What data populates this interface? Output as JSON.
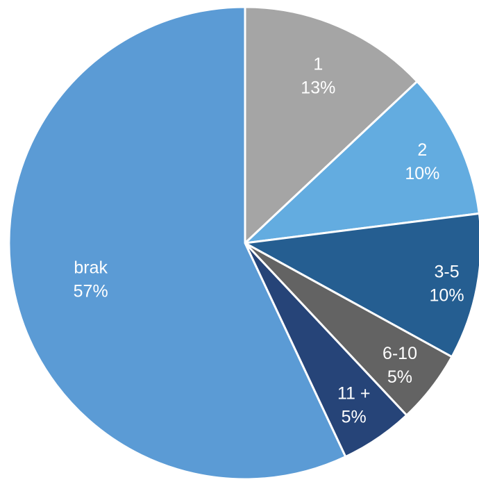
{
  "chart_data": {
    "type": "pie",
    "title": "",
    "slices": [
      {
        "name": "1",
        "pct_label": "13%",
        "value": 13,
        "color": "#A5A5A5"
      },
      {
        "name": "2",
        "pct_label": "10%",
        "value": 10,
        "color": "#63ACE0"
      },
      {
        "name": "3-5",
        "pct_label": "10%",
        "value": 10,
        "color": "#255E91"
      },
      {
        "name": "6-10",
        "pct_label": "5%",
        "value": 5,
        "color": "#636363"
      },
      {
        "name": "11 +",
        "pct_label": "5%",
        "value": 5,
        "color": "#264478"
      },
      {
        "name": "brak",
        "pct_label": "57%",
        "value": 57,
        "color": "#5B9BD5"
      }
    ],
    "start_angle": "12 o'clock",
    "direction": "clockwise",
    "legend": "none"
  }
}
